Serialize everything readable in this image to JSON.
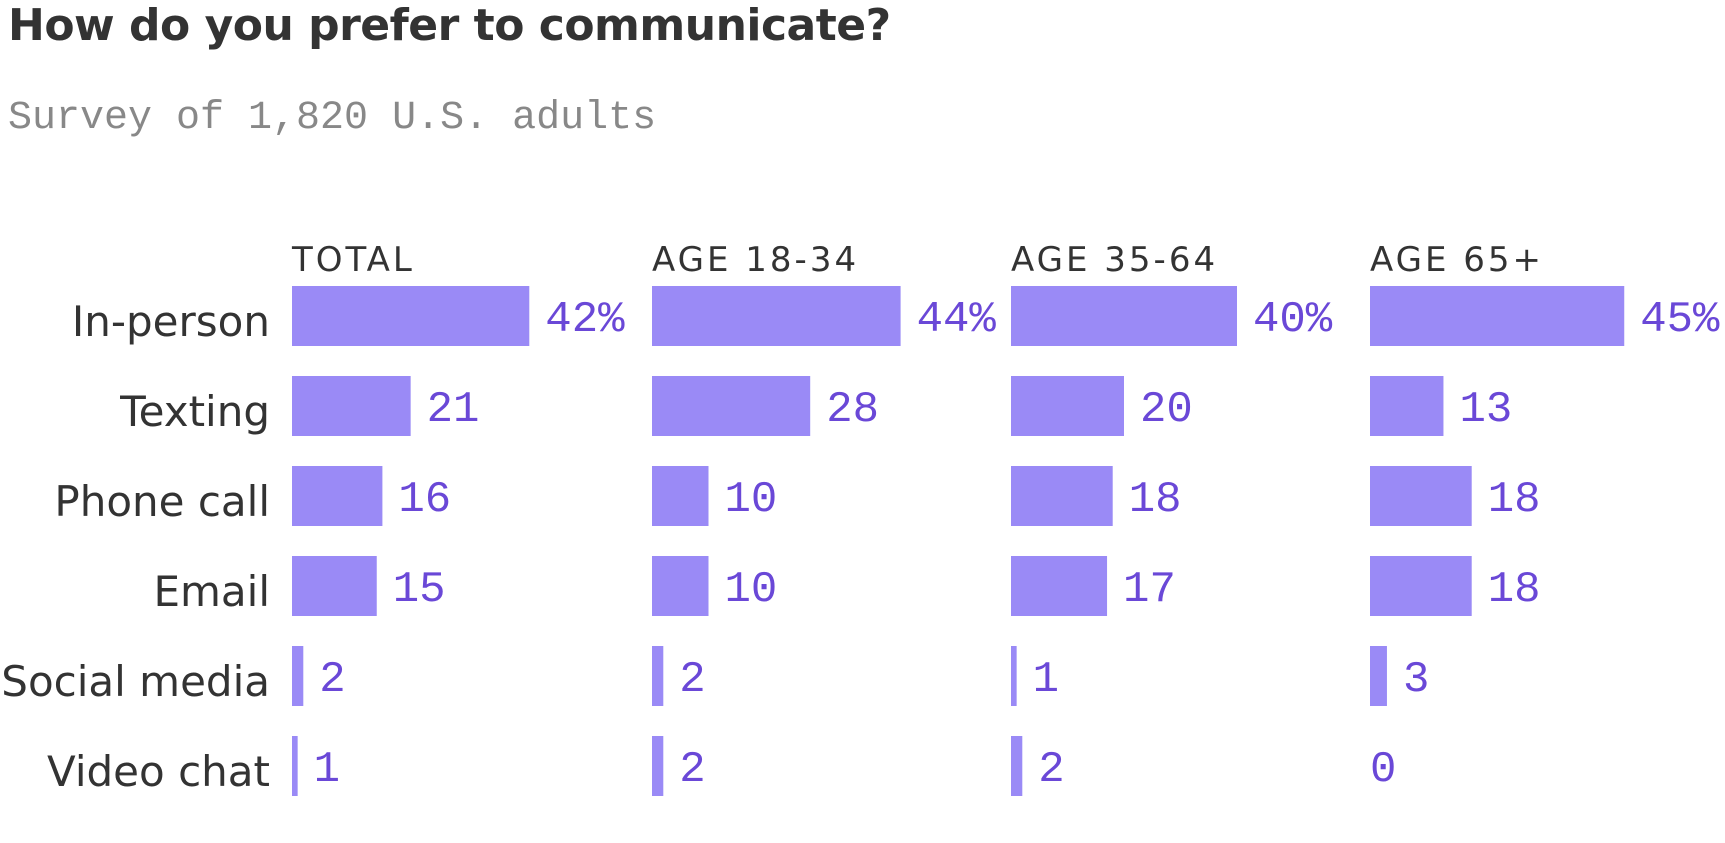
{
  "header": {
    "title": "How do you prefer to communicate?",
    "subtitle": "Survey of 1,820 U.S. adults"
  },
  "colors": {
    "bar": "#9a8af6",
    "value_label": "#6a48d7",
    "panel_title": "#333333",
    "category_label": "#333333"
  },
  "chart_data": {
    "type": "bar",
    "orientation": "horizontal",
    "title": "How do you prefer to communicate?",
    "subtitle": "Survey of 1,820 U.S. adults",
    "categories": [
      "In-person",
      "Texting",
      "Phone call",
      "Email",
      "Social media",
      "Video chat"
    ],
    "xlim": [
      0,
      45
    ],
    "grid": false,
    "legend": "none",
    "series": [
      {
        "name": "TOTAL",
        "values": [
          42,
          21,
          16,
          15,
          2,
          1
        ],
        "labels": [
          "42%",
          "21",
          "16",
          "15",
          "2",
          "1"
        ]
      },
      {
        "name": "AGE 18-34",
        "values": [
          44,
          28,
          10,
          10,
          2,
          2
        ],
        "labels": [
          "44%",
          "28",
          "10",
          "10",
          "2",
          "2"
        ]
      },
      {
        "name": "AGE 35-64",
        "values": [
          40,
          20,
          18,
          17,
          1,
          2
        ],
        "labels": [
          "40%",
          "20",
          "18",
          "17",
          "1",
          "2"
        ]
      },
      {
        "name": "AGE 65+",
        "values": [
          45,
          13,
          18,
          18,
          3,
          0
        ],
        "labels": [
          "45%",
          "13",
          "18",
          "18",
          "3",
          "0"
        ]
      }
    ]
  }
}
